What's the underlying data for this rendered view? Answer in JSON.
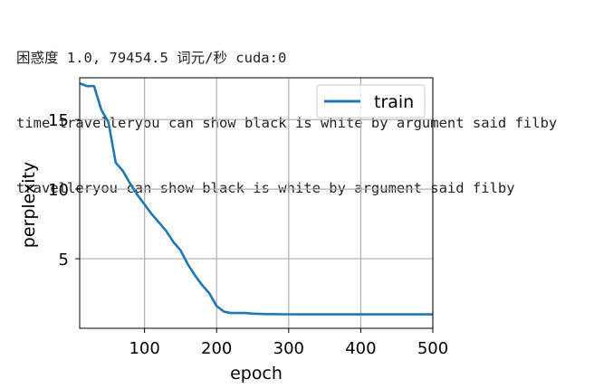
{
  "console": {
    "line1": "困惑度 1.0, 79454.5 词元/秒 cuda:0",
    "line2": "time travelleryou can show black is white by argument said filby",
    "line3": "travelleryou can show black is white by argument said filby"
  },
  "colors": {
    "series": "#1f77b4",
    "grid": "#b0b0b0",
    "axis": "#000000"
  },
  "chart_data": {
    "type": "line",
    "xlabel": "epoch",
    "ylabel": "perplexity",
    "xlim": [
      10,
      500
    ],
    "ylim": [
      0,
      18
    ],
    "xticks": [
      100,
      200,
      300,
      400,
      500
    ],
    "yticks": [
      5,
      10,
      15
    ],
    "grid": true,
    "legend_position": "top-right",
    "series": [
      {
        "name": "train",
        "x": [
          10,
          20,
          30,
          40,
          50,
          60,
          70,
          80,
          90,
          100,
          110,
          120,
          130,
          140,
          150,
          160,
          170,
          180,
          190,
          200,
          210,
          220,
          230,
          240,
          250,
          260,
          270,
          280,
          290,
          300,
          320,
          340,
          360,
          380,
          400,
          420,
          440,
          460,
          480,
          500
        ],
        "y": [
          17.6,
          17.4,
          17.4,
          15.7,
          14.8,
          11.9,
          11.3,
          10.4,
          9.6,
          8.9,
          8.2,
          7.6,
          7.0,
          6.2,
          5.6,
          4.6,
          3.8,
          3.1,
          2.5,
          1.6,
          1.2,
          1.1,
          1.1,
          1.1,
          1.05,
          1.03,
          1.02,
          1.02,
          1.01,
          1.01,
          1.0,
          1.0,
          1.0,
          1.0,
          1.0,
          1.0,
          1.0,
          1.0,
          1.0,
          1.0
        ]
      }
    ]
  }
}
